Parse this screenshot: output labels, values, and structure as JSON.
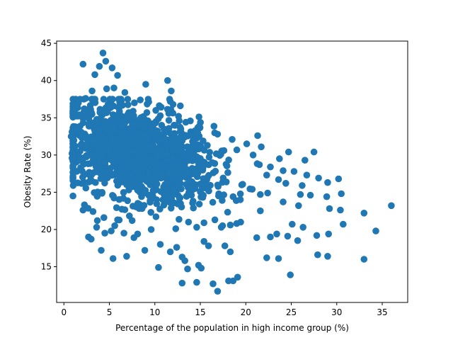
{
  "chart_data": {
    "type": "scatter",
    "title": "",
    "xlabel": "Percentage of the population in high income group (%)",
    "ylabel": "Obesity Rate (%)",
    "xlim": [
      -0.8,
      37.8
    ],
    "ylim": [
      10.2,
      45.3
    ],
    "xticks": [
      0,
      5,
      10,
      15,
      20,
      25,
      30,
      35
    ],
    "yticks": [
      15,
      20,
      25,
      30,
      35,
      40,
      45
    ],
    "grid": false,
    "legend": "none",
    "marker_color": "#1f77b4",
    "points": [
      [
        2.1,
        42.2
      ],
      [
        4.3,
        43.7
      ],
      [
        4.6,
        42.6
      ],
      [
        5.3,
        41.7
      ],
      [
        3.9,
        41.9
      ],
      [
        3.4,
        40.8
      ],
      [
        5.9,
        40.7
      ],
      [
        11.4,
        40.0
      ],
      [
        9.0,
        39.5
      ],
      [
        11.8,
        38.6
      ],
      [
        3.1,
        38.6
      ],
      [
        4.7,
        38.9
      ],
      [
        8.4,
        37.4
      ],
      [
        11.7,
        37.2
      ],
      [
        12.0,
        36.8
      ],
      [
        1.6,
        37.0
      ],
      [
        2.4,
        37.6
      ],
      [
        3.3,
        37.5
      ],
      [
        6.7,
        38.4
      ],
      [
        5.5,
        39.0
      ],
      [
        1.2,
        36.0
      ],
      [
        1.7,
        35.4
      ],
      [
        2.8,
        35.5
      ],
      [
        6.1,
        36.4
      ],
      [
        10.1,
        36.0
      ],
      [
        12.6,
        35.2
      ],
      [
        13.4,
        34.4
      ],
      [
        14.9,
        33.9
      ],
      [
        16.9,
        32.8
      ],
      [
        18.5,
        32.1
      ],
      [
        21.3,
        32.6
      ],
      [
        0.9,
        33.1
      ],
      [
        1.5,
        33.5
      ],
      [
        0.8,
        32.5
      ],
      [
        15.3,
        31.9
      ],
      [
        20.1,
        31.5
      ],
      [
        21.7,
        31.1
      ],
      [
        24.7,
        30.4
      ],
      [
        27.5,
        30.4
      ],
      [
        20.8,
        30.0
      ],
      [
        0.9,
        30.2
      ],
      [
        0.9,
        29.6
      ],
      [
        17.6,
        30.6
      ],
      [
        23.7,
        29.5
      ],
      [
        26.5,
        29.3
      ],
      [
        21.5,
        28.7
      ],
      [
        22.7,
        28.4
      ],
      [
        24.1,
        27.9
      ],
      [
        25.3,
        27.8
      ],
      [
        26.7,
        27.3
      ],
      [
        28.0,
        26.9
      ],
      [
        29.0,
        26.3
      ],
      [
        30.2,
        26.8
      ],
      [
        22.3,
        27.3
      ],
      [
        23.6,
        26.7
      ],
      [
        24.4,
        26.2
      ],
      [
        26.2,
        25.9
      ],
      [
        30.5,
        24.8
      ],
      [
        28.9,
        24.4
      ],
      [
        26.0,
        24.7
      ],
      [
        27.1,
        24.6
      ],
      [
        20.7,
        25.4
      ],
      [
        21.6,
        24.7
      ],
      [
        22.4,
        24.9
      ],
      [
        18.6,
        24.4
      ],
      [
        19.4,
        24.0
      ],
      [
        17.4,
        23.9
      ],
      [
        21.6,
        22.5
      ],
      [
        24.1,
        23.7
      ],
      [
        25.8,
        23.2
      ],
      [
        29.2,
        22.8
      ],
      [
        30.4,
        22.6
      ],
      [
        33.0,
        22.2
      ],
      [
        36.0,
        23.2
      ],
      [
        34.3,
        19.8
      ],
      [
        30.7,
        20.7
      ],
      [
        27.8,
        19.2
      ],
      [
        29.1,
        19.4
      ],
      [
        26.3,
        20.3
      ],
      [
        25.1,
        20.7
      ],
      [
        24.6,
        19.1
      ],
      [
        22.7,
        19.0
      ],
      [
        23.4,
        19.4
      ],
      [
        21.2,
        18.9
      ],
      [
        19.0,
        20.8
      ],
      [
        18.3,
        20.6
      ],
      [
        17.3,
        20.3
      ],
      [
        16.6,
        21.3
      ],
      [
        22.3,
        16.2
      ],
      [
        23.6,
        16.1
      ],
      [
        25.7,
        18.5
      ],
      [
        27.9,
        16.6
      ],
      [
        29.0,
        16.4
      ],
      [
        33.0,
        16.0
      ],
      [
        24.9,
        13.9
      ],
      [
        19.1,
        13.6
      ],
      [
        18.6,
        13.1
      ],
      [
        18.1,
        13.1
      ],
      [
        16.9,
        11.7
      ],
      [
        16.4,
        12.7
      ],
      [
        14.6,
        12.9
      ],
      [
        13.0,
        12.8
      ],
      [
        13.6,
        14.7
      ],
      [
        13.3,
        15.8
      ],
      [
        14.8,
        15.2
      ],
      [
        15.1,
        14.8
      ],
      [
        10.4,
        14.9
      ],
      [
        15.9,
        17.8
      ],
      [
        17.7,
        17.8
      ],
      [
        18.3,
        17.0
      ],
      [
        5.4,
        16.1
      ],
      [
        6.9,
        16.4
      ],
      [
        4.1,
        17.2
      ],
      [
        7.7,
        18.9
      ],
      [
        8.9,
        17.2
      ],
      [
        10.6,
        18.0
      ],
      [
        11.7,
        17.0
      ],
      [
        12.4,
        17.6
      ],
      [
        13.0,
        16.3
      ],
      [
        15.4,
        18.4
      ],
      [
        2.7,
        19.0
      ],
      [
        3.0,
        18.7
      ],
      [
        3.6,
        20.3
      ],
      [
        4.5,
        19.5
      ],
      [
        5.2,
        19.8
      ],
      [
        6.6,
        19.5
      ],
      [
        8.1,
        19.4
      ],
      [
        9.6,
        20.0
      ],
      [
        2.1,
        22.6
      ],
      [
        3.2,
        22.4
      ],
      [
        4.4,
        21.6
      ],
      [
        5.9,
        21.3
      ],
      [
        7.5,
        21.2
      ],
      [
        12.3,
        20.1
      ],
      [
        13.7,
        21.0
      ],
      [
        14.6,
        20.3
      ],
      [
        15.4,
        20.9
      ]
    ]
  }
}
